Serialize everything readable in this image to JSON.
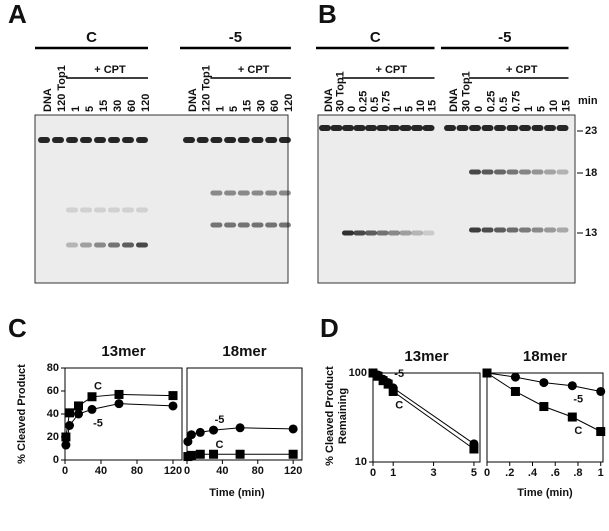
{
  "gels": [
    {
      "letter": "A",
      "groups": [
        {
          "name": "C",
          "treatment": "+ CPT",
          "lanes": [
            "DNA",
            "120 Top1",
            "1",
            "5",
            "15",
            "30",
            "60",
            "120"
          ]
        },
        {
          "name": "-5",
          "treatment": "+ CPT",
          "lanes": [
            "DNA",
            "120 Top1",
            "1",
            "5",
            "15",
            "30",
            "60",
            "120"
          ]
        }
      ]
    },
    {
      "letter": "B",
      "unit": "min",
      "markers": [
        "23",
        "18",
        "13"
      ],
      "groups": [
        {
          "name": "C",
          "treatment": "+ CPT",
          "lanes": [
            "DNA",
            "30 Top1",
            "0",
            "0.25",
            "0.5",
            "0.75",
            "1",
            "5",
            "10",
            "15"
          ]
        },
        {
          "name": "-5",
          "treatment": "+ CPT",
          "lanes": [
            "DNA",
            "30 Top1",
            "0",
            "0.25",
            "0.5",
            "0.75",
            "1",
            "5",
            "10",
            "15"
          ]
        }
      ]
    }
  ],
  "plot_panels": [
    {
      "letter": "C",
      "ylabel": [
        "% Cleaved Product"
      ],
      "xlabel": "Time (min)"
    },
    {
      "letter": "D",
      "ylabel": [
        "% Cleaved Product",
        "Remaining"
      ],
      "xlabel": "Time (min)"
    }
  ],
  "chart_data": [
    {
      "type": "line",
      "title": "13mer",
      "x": [
        1,
        5,
        15,
        30,
        60,
        120
      ],
      "xlim": [
        0,
        130
      ],
      "xticks": [
        0,
        40,
        80,
        120
      ],
      "ylim": [
        0,
        80
      ],
      "yticks": [
        0,
        20,
        40,
        60,
        80
      ],
      "series": [
        {
          "name": "C",
          "color": "#000000",
          "marker": "square",
          "values": [
            20,
            41,
            47,
            55,
            57,
            56
          ]
        },
        {
          "name": "-5",
          "color": "#000000",
          "marker": "circle",
          "values": [
            13,
            30,
            40,
            44,
            49,
            47
          ]
        }
      ]
    },
    {
      "type": "line",
      "title": "18mer",
      "x": [
        1,
        5,
        15,
        30,
        60,
        120
      ],
      "xlim": [
        0,
        130
      ],
      "xticks": [
        0,
        40,
        80,
        120
      ],
      "ylim": [
        0,
        80
      ],
      "series": [
        {
          "name": "-5",
          "color": "#000000",
          "marker": "circle",
          "values": [
            16,
            22,
            24,
            26,
            28,
            27
          ]
        },
        {
          "name": "C",
          "color": "#000000",
          "marker": "square",
          "values": [
            3,
            4,
            5,
            5,
            5,
            5
          ]
        }
      ]
    },
    {
      "type": "line",
      "title": "13mer",
      "x": [
        0,
        0.25,
        0.5,
        0.75,
        1,
        5
      ],
      "xlim": [
        0,
        5.3
      ],
      "xticks": [
        0,
        1,
        3,
        5
      ],
      "ylim": [
        10,
        100
      ],
      "yticks": [
        10,
        100
      ],
      "log_y": true,
      "series": [
        {
          "name": "-5",
          "color": "#000000",
          "marker": "circle",
          "values": [
            100,
            95,
            85,
            78,
            68,
            16
          ]
        },
        {
          "name": "C",
          "color": "#000000",
          "marker": "square",
          "values": [
            100,
            92,
            82,
            75,
            62,
            14
          ]
        }
      ]
    },
    {
      "type": "line",
      "title": "18mer",
      "x": [
        0,
        0.25,
        0.5,
        0.75,
        1
      ],
      "xlim": [
        0,
        1.02
      ],
      "xticks": [
        0,
        {
          "value": 0.2,
          "label": ".2"
        },
        {
          "value": 0.4,
          "label": ".4"
        },
        {
          "value": 0.6,
          "label": ".6"
        },
        {
          "value": 0.8,
          "label": ".8"
        },
        1
      ],
      "ylim": [
        10,
        100
      ],
      "log_y": true,
      "series": [
        {
          "name": "-5",
          "color": "#000000",
          "marker": "circle",
          "values": [
            100,
            90,
            78,
            72,
            62
          ]
        },
        {
          "name": "C",
          "color": "#000000",
          "marker": "square",
          "values": [
            100,
            62,
            42,
            32,
            22
          ]
        }
      ]
    }
  ]
}
